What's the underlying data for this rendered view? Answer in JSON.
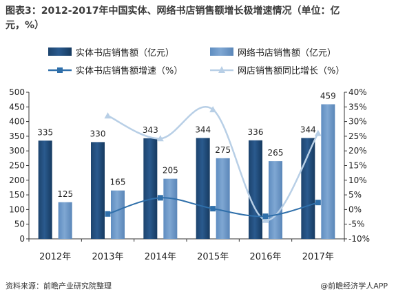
{
  "title": {
    "line1": "图表3：2012-2017年中国实体、网络书店销售额增长极增速情况（单位：亿",
    "line2": "元，%）"
  },
  "source": "资料来源：前瞻产业研究院整理",
  "brand": "@前瞻经济学人APP",
  "colors": {
    "bar1": "#2a5a8e",
    "bar2": "#7fa7d3",
    "line1": "#2f6faa",
    "line2": "#b8cfe6"
  },
  "chart_data": {
    "type": "bar",
    "categories": [
      "2012年",
      "2013年",
      "2014年",
      "2015年",
      "2016年",
      "2017年"
    ],
    "series": [
      {
        "name": "实体书店销售额（亿元）",
        "kind": "bar",
        "axis": "left",
        "values": [
          335,
          330,
          343,
          344,
          336,
          344
        ]
      },
      {
        "name": "网络书店销售额（亿元）",
        "kind": "bar",
        "axis": "left",
        "values": [
          125,
          165,
          205,
          275,
          265,
          459
        ]
      },
      {
        "name": "实体书店销售额增速（%）",
        "kind": "line",
        "axis": "right",
        "values": [
          null,
          -1.5,
          4.0,
          0.3,
          -2.3,
          2.4
        ]
      },
      {
        "name": "网店销售额同比增长（%）",
        "kind": "line",
        "axis": "right",
        "values": [
          null,
          32.0,
          24.2,
          34.1,
          -3.6,
          26.0
        ]
      }
    ],
    "ylim_left": [
      0,
      500
    ],
    "yticks_left": [
      "0",
      "50",
      "100",
      "150",
      "200",
      "250",
      "300",
      "350",
      "400",
      "450",
      "500"
    ],
    "ylim_right": [
      -10,
      40
    ],
    "yticks_right": [
      "-10%",
      "-5%",
      "0%",
      "5%",
      "10%",
      "15%",
      "20%",
      "25%",
      "30%",
      "35%",
      "40%"
    ],
    "legend": "top",
    "grid": false
  }
}
